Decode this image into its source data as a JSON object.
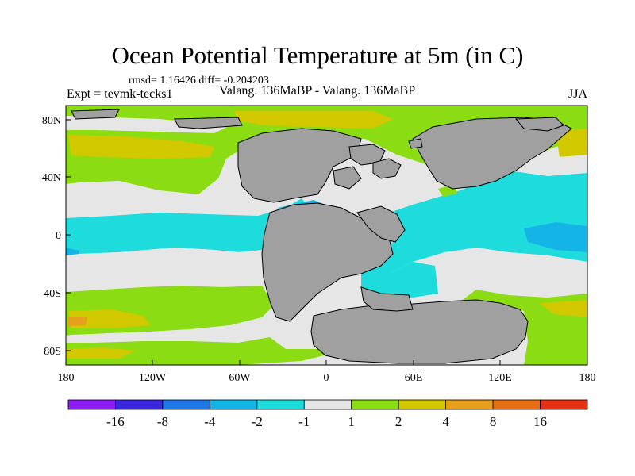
{
  "title": "Ocean Potential Temperature at 5m (in C)",
  "stats": "rmsd= 1.16426 diff= -0.204203",
  "experiment": "Expt = tevmk-tecks1",
  "subtitle": "Valang. 136MaBP - Valang. 136MaBP",
  "season": "JJA",
  "lat_labels": [
    "80N",
    "40N",
    "0",
    "40S",
    "80S"
  ],
  "lon_labels": [
    "180",
    "120W",
    "60W",
    "0",
    "60E",
    "120E",
    "180"
  ],
  "colorbar": {
    "labels": [
      "-16",
      "-8",
      "-4",
      "-2",
      "-1",
      "1",
      "2",
      "4",
      "8",
      "16"
    ],
    "colors": [
      "#8c1ef0",
      "#3c28dc",
      "#1e78e6",
      "#14b4e6",
      "#1edcdc",
      "#e6e6e6",
      "#8cdc14",
      "#d2c800",
      "#e6a01e",
      "#e66e14",
      "#e63214"
    ]
  },
  "map_colors": {
    "land": "#a0a0a0",
    "neutral": "#e6e6e6",
    "green": "#8cdc14",
    "yellow": "#d2c800",
    "orange": "#e6a01e",
    "cyan": "#1edcdc",
    "lightblue": "#14b4e6"
  }
}
